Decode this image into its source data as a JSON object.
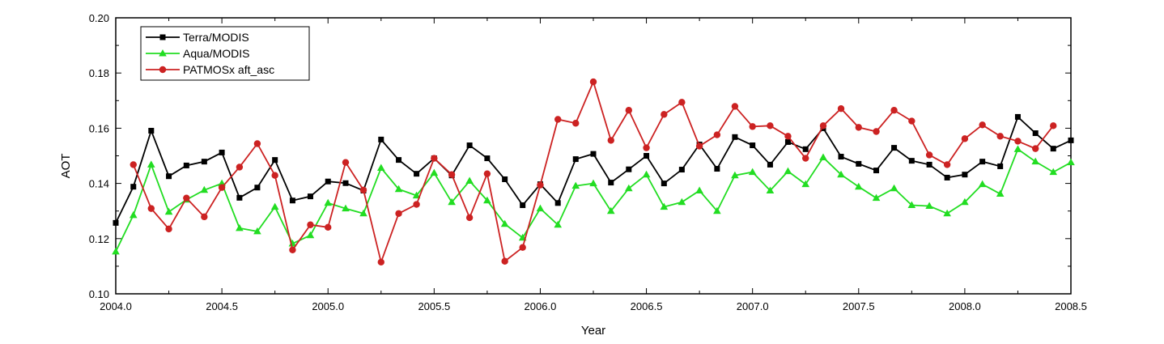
{
  "chart_data": {
    "type": "line",
    "title": "",
    "xlabel": "Year",
    "ylabel": "AOT",
    "xlim": [
      2004.0,
      2008.5
    ],
    "ylim": [
      0.1,
      0.2
    ],
    "x_ticks": [
      2004.0,
      2004.5,
      2005.0,
      2005.5,
      2006.0,
      2006.5,
      2007.0,
      2007.5,
      2008.0,
      2008.5
    ],
    "x_tick_labels": [
      "2004.0",
      "2004.5",
      "2005.0",
      "2005.5",
      "2006.0",
      "2006.5",
      "2007.0",
      "2007.5",
      "2008.0",
      "2008.5"
    ],
    "y_ticks": [
      0.1,
      0.12,
      0.14,
      0.16,
      0.18,
      0.2
    ],
    "y_tick_labels": [
      "0.10",
      "0.12",
      "0.14",
      "0.16",
      "0.18",
      "0.20"
    ],
    "grid": false,
    "legend_position": "top-left",
    "series": [
      {
        "name": "Terra/MODIS",
        "color": "#000000",
        "marker": "square",
        "x": [
          2004.0,
          2004.083,
          2004.167,
          2004.25,
          2004.333,
          2004.417,
          2004.5,
          2004.583,
          2004.667,
          2004.75,
          2004.833,
          2004.917,
          2005.0,
          2005.083,
          2005.167,
          2005.25,
          2005.333,
          2005.417,
          2005.5,
          2005.583,
          2005.667,
          2005.75,
          2005.833,
          2005.917,
          2006.0,
          2006.083,
          2006.167,
          2006.25,
          2006.333,
          2006.417,
          2006.5,
          2006.583,
          2006.667,
          2006.75,
          2006.833,
          2006.917,
          2007.0,
          2007.083,
          2007.167,
          2007.25,
          2007.333,
          2007.417,
          2007.5,
          2007.583,
          2007.667,
          2007.75,
          2007.833,
          2007.917,
          2008.0,
          2008.083,
          2008.167,
          2008.25,
          2008.333,
          2008.417,
          2008.5
        ],
        "y": [
          0.1257,
          0.1388,
          0.1591,
          0.1426,
          0.1465,
          0.1479,
          0.1512,
          0.1348,
          0.1385,
          0.1485,
          0.1338,
          0.1353,
          0.1407,
          0.1401,
          0.1374,
          0.1559,
          0.1485,
          0.1435,
          0.1491,
          0.1429,
          0.1538,
          0.1491,
          0.1415,
          0.1321,
          0.1397,
          0.1329,
          0.1488,
          0.1507,
          0.1403,
          0.1451,
          0.15,
          0.14,
          0.145,
          0.1541,
          0.1453,
          0.1568,
          0.1538,
          0.1468,
          0.155,
          0.1524,
          0.16,
          0.1497,
          0.1471,
          0.1447,
          0.1529,
          0.1482,
          0.1468,
          0.1421,
          0.1432,
          0.1479,
          0.1462,
          0.1641,
          0.1582,
          0.1526,
          0.1556
        ]
      },
      {
        "name": "Aqua/MODIS",
        "color": "#22dd22",
        "marker": "triangle",
        "x": [
          2004.0,
          2004.083,
          2004.167,
          2004.25,
          2004.333,
          2004.417,
          2004.5,
          2004.583,
          2004.667,
          2004.75,
          2004.833,
          2004.917,
          2005.0,
          2005.083,
          2005.167,
          2005.25,
          2005.333,
          2005.417,
          2005.5,
          2005.583,
          2005.667,
          2005.75,
          2005.833,
          2005.917,
          2006.0,
          2006.083,
          2006.167,
          2006.25,
          2006.333,
          2006.417,
          2006.5,
          2006.583,
          2006.667,
          2006.75,
          2006.833,
          2006.917,
          2007.0,
          2007.083,
          2007.167,
          2007.25,
          2007.333,
          2007.417,
          2007.5,
          2007.583,
          2007.667,
          2007.75,
          2007.833,
          2007.917,
          2008.0,
          2008.083,
          2008.167,
          2008.25,
          2008.333,
          2008.417,
          2008.5
        ],
        "y": [
          0.1153,
          0.1285,
          0.1468,
          0.1297,
          0.1341,
          0.1376,
          0.14,
          0.1238,
          0.1226,
          0.1315,
          0.1182,
          0.1212,
          0.1329,
          0.1309,
          0.1291,
          0.1456,
          0.1379,
          0.1356,
          0.1438,
          0.1332,
          0.1409,
          0.1338,
          0.1253,
          0.1203,
          0.1309,
          0.125,
          0.1391,
          0.14,
          0.13,
          0.1382,
          0.1432,
          0.1315,
          0.1332,
          0.1374,
          0.13,
          0.1429,
          0.1441,
          0.1374,
          0.1444,
          0.1397,
          0.1494,
          0.1432,
          0.1388,
          0.1347,
          0.1382,
          0.1321,
          0.1318,
          0.1291,
          0.1332,
          0.1397,
          0.1362,
          0.1524,
          0.1479,
          0.1441,
          0.1476
        ]
      },
      {
        "name": "PATMOSx aft_asc",
        "color": "#cc2222",
        "marker": "circle",
        "x": [
          2004.083,
          2004.167,
          2004.25,
          2004.333,
          2004.417,
          2004.5,
          2004.583,
          2004.667,
          2004.75,
          2004.833,
          2004.917,
          2005.0,
          2005.083,
          2005.167,
          2005.25,
          2005.333,
          2005.417,
          2005.5,
          2005.583,
          2005.667,
          2005.75,
          2005.833,
          2005.917,
          2006.0,
          2006.083,
          2006.167,
          2006.25,
          2006.333,
          2006.417,
          2006.5,
          2006.583,
          2006.667,
          2006.75,
          2006.833,
          2006.917,
          2007.0,
          2007.083,
          2007.167,
          2007.25,
          2007.333,
          2007.417,
          2007.5,
          2007.583,
          2007.667,
          2007.75,
          2007.833,
          2007.917,
          2008.0,
          2008.083,
          2008.167,
          2008.25,
          2008.333,
          2008.417
        ],
        "y": [
          0.1468,
          0.1309,
          0.1235,
          0.1347,
          0.1279,
          0.1385,
          0.1459,
          0.1544,
          0.1429,
          0.1159,
          0.125,
          0.1241,
          0.1476,
          0.1376,
          0.1115,
          0.1291,
          0.1324,
          0.1491,
          0.1432,
          0.1276,
          0.1435,
          0.1118,
          0.1168,
          0.1394,
          0.1632,
          0.1618,
          0.1768,
          0.1556,
          0.1665,
          0.1529,
          0.165,
          0.1694,
          0.1535,
          0.1576,
          0.1679,
          0.1606,
          0.1609,
          0.1571,
          0.1491,
          0.1609,
          0.1671,
          0.1603,
          0.1588,
          0.1665,
          0.1626,
          0.1503,
          0.1468,
          0.1562,
          0.1612,
          0.1571,
          0.1553,
          0.1526,
          0.1609
        ]
      }
    ]
  }
}
